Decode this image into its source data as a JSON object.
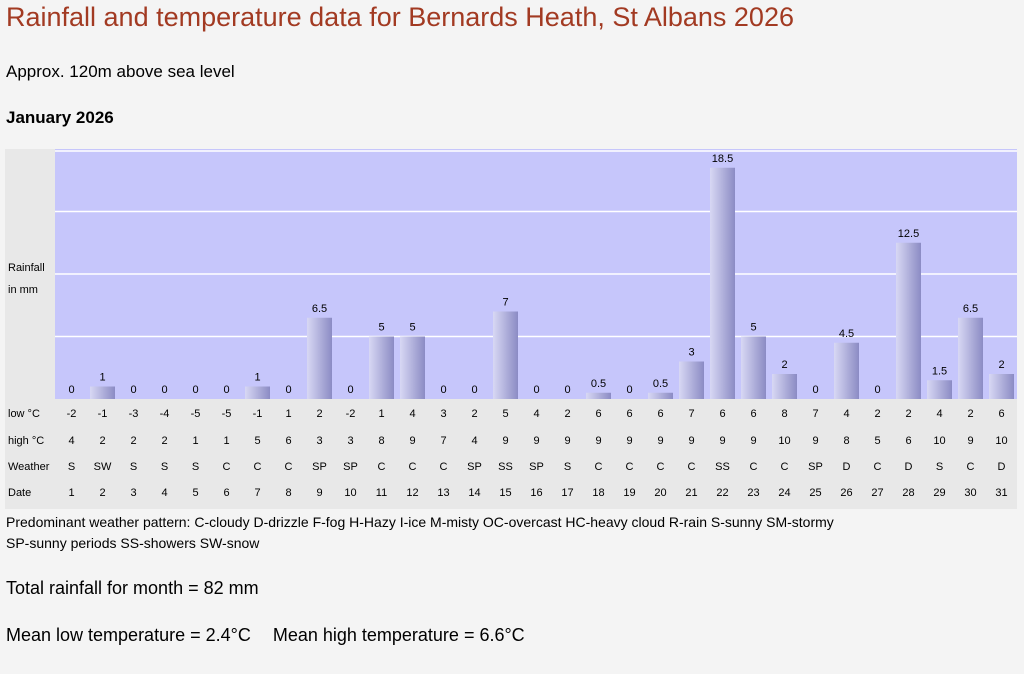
{
  "header": {
    "title": "Rainfall and temperature data for Bernards Heath, St Albans 2026",
    "altitude": "Approx. 120m above sea level",
    "month": "January 2026"
  },
  "chart_data": {
    "type": "bar",
    "ylabel_line1": "Rainfall",
    "ylabel_line2": "in mm",
    "ylim": [
      0,
      20
    ],
    "gridlines": [
      5,
      10,
      15,
      20
    ],
    "dates": [
      1,
      2,
      3,
      4,
      5,
      6,
      7,
      8,
      9,
      10,
      11,
      12,
      13,
      14,
      15,
      16,
      17,
      18,
      19,
      20,
      21,
      22,
      23,
      24,
      25,
      26,
      27,
      28,
      29,
      30,
      31
    ],
    "rainfall_labels": [
      "0",
      "1",
      "0",
      "0",
      "0",
      "0",
      "1",
      "0",
      "6.5",
      "0",
      "5",
      "5",
      "0",
      "0",
      "7",
      "0",
      "0",
      "0.5",
      "0",
      "0.5",
      "3",
      "18.5",
      "5",
      "2",
      "0",
      "4.5",
      "0",
      "12.5",
      "1.5",
      "6.5",
      "2"
    ],
    "low": [
      "-2",
      "-1",
      "-3",
      "-4",
      "-5",
      "-5",
      "-1",
      "1",
      "2",
      "-2",
      "1",
      "4",
      "3",
      "2",
      "5",
      "4",
      "2",
      "6",
      "6",
      "6",
      "7",
      "6",
      "6",
      "8",
      "7",
      "4",
      "2",
      "2",
      "4",
      "2",
      "6"
    ],
    "high": [
      "4",
      "2",
      "2",
      "2",
      "1",
      "1",
      "5",
      "6",
      "3",
      "3",
      "8",
      "9",
      "7",
      "4",
      "9",
      "9",
      "9",
      "9",
      "9",
      "9",
      "9",
      "9",
      "9",
      "10",
      "9",
      "8",
      "5",
      "6",
      "10",
      "9",
      "10"
    ],
    "weather": [
      "S",
      "SW",
      "S",
      "S",
      "S",
      "C",
      "C",
      "C",
      "SP",
      "SP",
      "C",
      "C",
      "C",
      "SP",
      "SS",
      "SP",
      "S",
      "C",
      "C",
      "C",
      "C",
      "SS",
      "C",
      "C",
      "SP",
      "D",
      "C",
      "D",
      "S",
      "C",
      "D"
    ],
    "row_labels": {
      "low": "low °C",
      "high": "high °C",
      "weather": "Weather",
      "date": "Date"
    },
    "colors": {
      "plot_bg": "#c6c6fb",
      "bar_light": "#d8d8f4",
      "bar_dark": "#8b8bc4",
      "grid": "#ffffff"
    }
  },
  "legend": {
    "line1": "Predominant weather pattern: C-cloudy D-drizzle F-fog H-Hazy I-ice M-misty OC-overcast HC-heavy cloud R-rain S-sunny SM-stormy",
    "line2": "SP-sunny periods SS-showers SW-snow"
  },
  "summary": {
    "total": "Total rainfall for month = 82 mm",
    "mean_low": "Mean low temperature = 2.4°C",
    "mean_high": "Mean high temperature = 6.6°C"
  }
}
